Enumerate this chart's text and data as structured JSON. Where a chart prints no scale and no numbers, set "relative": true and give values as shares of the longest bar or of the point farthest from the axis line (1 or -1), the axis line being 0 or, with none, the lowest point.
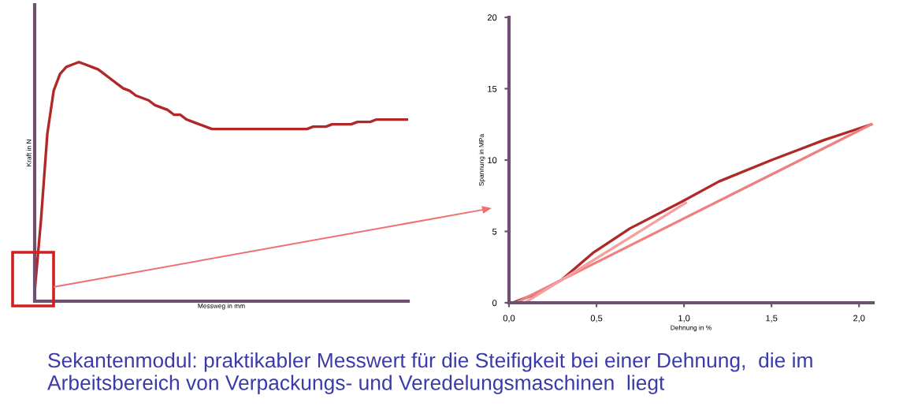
{
  "chart_data": [
    {
      "type": "line",
      "relative": true,
      "xlabel": "Messweg in mm",
      "ylabel": "Kraft in N",
      "categories": [
        null,
        null,
        null,
        null,
        null,
        null,
        null,
        null,
        null,
        null,
        null,
        null,
        null,
        null,
        null,
        null,
        null,
        null,
        null,
        null,
        null,
        null,
        null,
        null,
        null,
        null,
        null,
        null,
        null,
        null,
        null,
        null,
        null,
        null,
        null,
        null,
        null,
        null,
        null,
        null,
        null,
        null,
        null,
        null,
        null,
        null,
        null,
        null,
        null,
        null,
        null,
        null,
        null,
        null,
        null,
        null,
        null,
        null,
        null,
        null
      ],
      "series": [
        {
          "color": "#b02828",
          "values": [
            0.04,
            0.34,
            0.7,
            0.88,
            0.95,
            0.98,
            0.99,
            1,
            0.99,
            0.98,
            0.97,
            0.95,
            0.93,
            0.91,
            0.89,
            0.88,
            0.86,
            0.85,
            0.84,
            0.82,
            0.81,
            0.8,
            0.78,
            0.78,
            0.76,
            0.75,
            0.74,
            0.73,
            0.72,
            0.72,
            0.72,
            0.72,
            0.72,
            0.72,
            0.72,
            0.72,
            0.72,
            0.72,
            0.72,
            0.72,
            0.72,
            0.72,
            0.72,
            0.72,
            0.73,
            0.73,
            0.73,
            0.74,
            0.74,
            0.74,
            0.74,
            0.75,
            0.75,
            0.75,
            0.76,
            0.76,
            0.76,
            0.76,
            0.76,
            0.76
          ]
        }
      ]
    },
    {
      "type": "line",
      "xlabel": "Dehnung in %",
      "ylabel": "Spannung in MPa",
      "xlim": [
        0,
        2.08
      ],
      "ylim": [
        0,
        20
      ],
      "xticks": [
        {
          "value": 0,
          "label": "0,0"
        },
        {
          "value": 0.5,
          "label": "0,5"
        },
        {
          "value": 1,
          "label": "1,0"
        },
        {
          "value": 1.5,
          "label": "1,5"
        },
        {
          "value": 2,
          "label": "2,0"
        }
      ],
      "yticks": [
        0,
        5,
        10,
        15,
        20
      ],
      "series": [
        {
          "color": "#b02828",
          "x": [
            0.02,
            0.15,
            0.3,
            0.48,
            0.69,
            0.99,
            1.2,
            1.5,
            1.8,
            2.07
          ],
          "values": [
            0,
            0.6,
            1.6,
            3.5,
            5.2,
            7.1,
            8.5,
            10,
            11.4,
            12.5
          ]
        },
        {
          "color": "#f08080",
          "x": [
            0.04,
            2.07
          ],
          "values": [
            0,
            12.5
          ]
        },
        {
          "color": "#f4a0a0",
          "x": [
            0.09,
            1.01
          ],
          "values": [
            0,
            7.0
          ]
        }
      ],
      "annotations": [
        "Sekantenmodul: praktikabler Messwert für die Steifigkeit bei einer Dehnung,  die im Arbeitsbereich von Verpackungs- und Veredelungsmaschinen  liegt"
      ]
    }
  ]
}
